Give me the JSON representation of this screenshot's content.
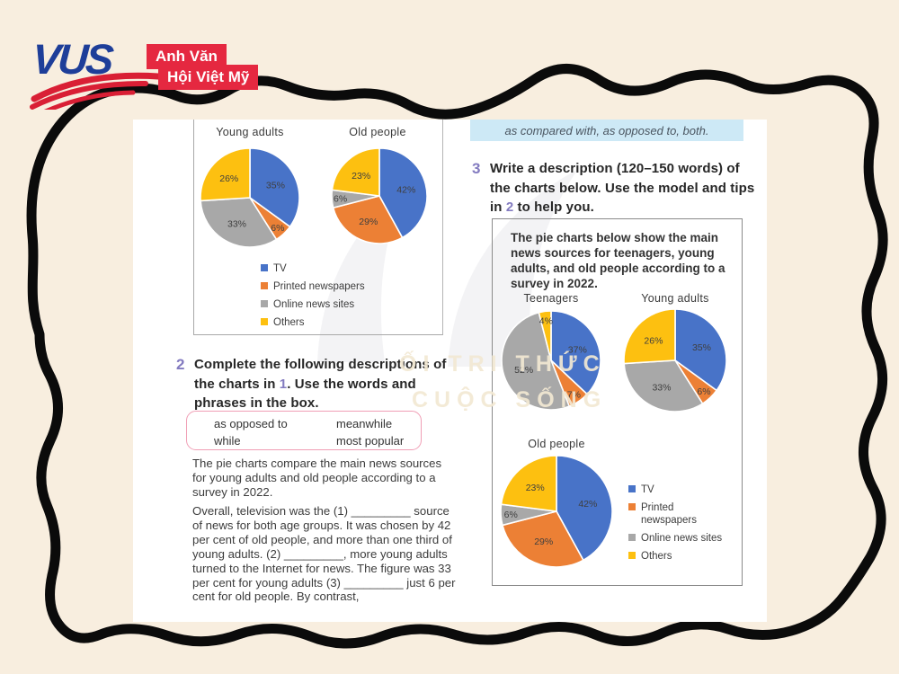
{
  "logo": {
    "brand": "VUS",
    "badges": [
      "Anh Văn",
      "Hội Việt Mỹ"
    ]
  },
  "highlight_text": "as compared with, as opposed to, both.",
  "exercise3": {
    "number": "3",
    "instr_pre": "Write a description (120–150 words) of the charts below. Use the model and tips in ",
    "instr_ref": "2",
    "instr_post": " to help you.",
    "figure_caption": "The pie charts below show the main news sources for teenagers, young adults, and old people according to a survey in 2022."
  },
  "exercise2": {
    "number": "2",
    "instr_pre": "Complete the following descriptions of the charts in ",
    "instr_ref": "1",
    "instr_post": ". Use the words and phrases in the box.",
    "word_box": [
      "as opposed to",
      "meanwhile",
      "while",
      "most popular"
    ],
    "para1": "The pie charts compare the main news sources for young adults and old people according to a survey in 2022.",
    "para2": "Overall, television was the (1) _________ source of news for both age groups. It was chosen by 42 per cent of old people, and more than one third of young adults. (2) _________, more young adults turned to the Internet for news. The figure was 33 per cent for young adults (3) _________ just 6 per cent for old people. By contrast,"
  },
  "watermark": {
    "line1": "ỐI TRI THỨC",
    "line2": "CUỘC SỐNG"
  },
  "chart_data": {
    "type": "pie",
    "legend": [
      "TV",
      "Printed newspapers",
      "Online news sites",
      "Others"
    ],
    "colors": [
      "#4873C8",
      "#EC8035",
      "#A8A8A8",
      "#FDC010"
    ],
    "figures": [
      {
        "charts": [
          {
            "title": "Young adults",
            "values": [
              35,
              6,
              33,
              26
            ]
          },
          {
            "title": "Old people",
            "values": [
              42,
              29,
              6,
              23
            ]
          }
        ]
      },
      {
        "charts": [
          {
            "title": "Teenagers",
            "values": [
              37,
              7,
              52,
              4
            ]
          },
          {
            "title": "Young adults",
            "values": [
              35,
              6,
              33,
              26
            ]
          },
          {
            "title": "Old people",
            "values": [
              42,
              29,
              6,
              23
            ]
          }
        ]
      }
    ]
  }
}
